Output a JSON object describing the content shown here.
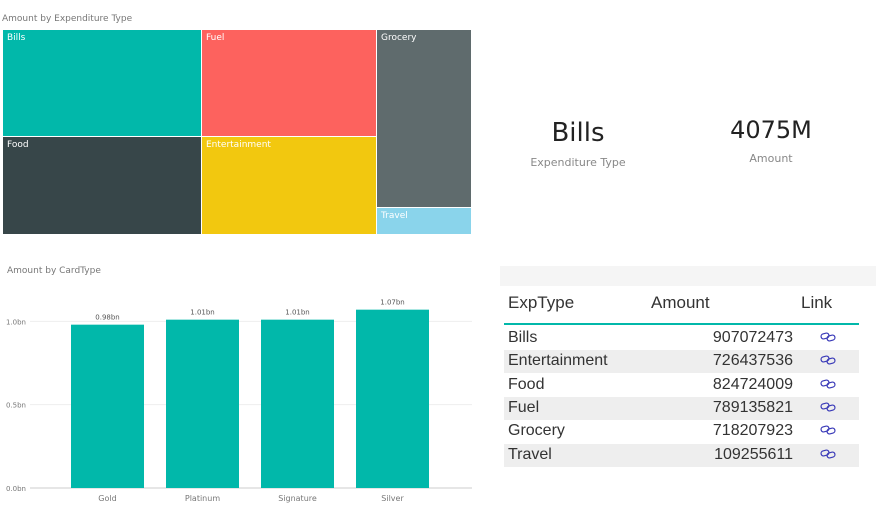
{
  "treemap": {
    "title": "Amount by Expenditure Type",
    "tiles": [
      {
        "label": "Bills",
        "color": "#01B8AA"
      },
      {
        "label": "Fuel",
        "color": "#FD625E"
      },
      {
        "label": "Grocery",
        "color": "#5F6B6D"
      },
      {
        "label": "Food",
        "color": "#374649"
      },
      {
        "label": "Entertainment",
        "color": "#F2C80F"
      },
      {
        "label": "Travel",
        "color": "#8AD4EB"
      }
    ]
  },
  "cards": [
    {
      "value": "Bills",
      "category": "Expenditure Type"
    },
    {
      "value": "4075M",
      "category": "Amount"
    }
  ],
  "chart_data": {
    "type": "bar",
    "title": "Amount by CardType",
    "xlabel": "",
    "ylabel": "",
    "categories": [
      "Gold",
      "Platinum",
      "Signature",
      "Silver"
    ],
    "values": [
      0.98,
      1.01,
      1.01,
      1.07
    ],
    "data_labels": [
      "0.98bn",
      "1.01bn",
      "1.01bn",
      "1.07bn"
    ],
    "y_ticks": [
      "0.0bn",
      "0.5bn",
      "1.0bn"
    ],
    "ylim": [
      0,
      1.2
    ],
    "color": "#01B8AA",
    "grid": true
  },
  "table": {
    "headers": [
      "ExpType",
      "Amount",
      "Link"
    ],
    "accent": "#01B8AA",
    "link_icon": "chain-link-icon",
    "rows": [
      {
        "type": "Bills",
        "amount": "907072473"
      },
      {
        "type": "Entertainment",
        "amount": "726437536"
      },
      {
        "type": "Food",
        "amount": "824724009"
      },
      {
        "type": "Fuel",
        "amount": "789135821"
      },
      {
        "type": "Grocery",
        "amount": "718207923"
      },
      {
        "type": "Travel",
        "amount": "109255611"
      }
    ]
  }
}
